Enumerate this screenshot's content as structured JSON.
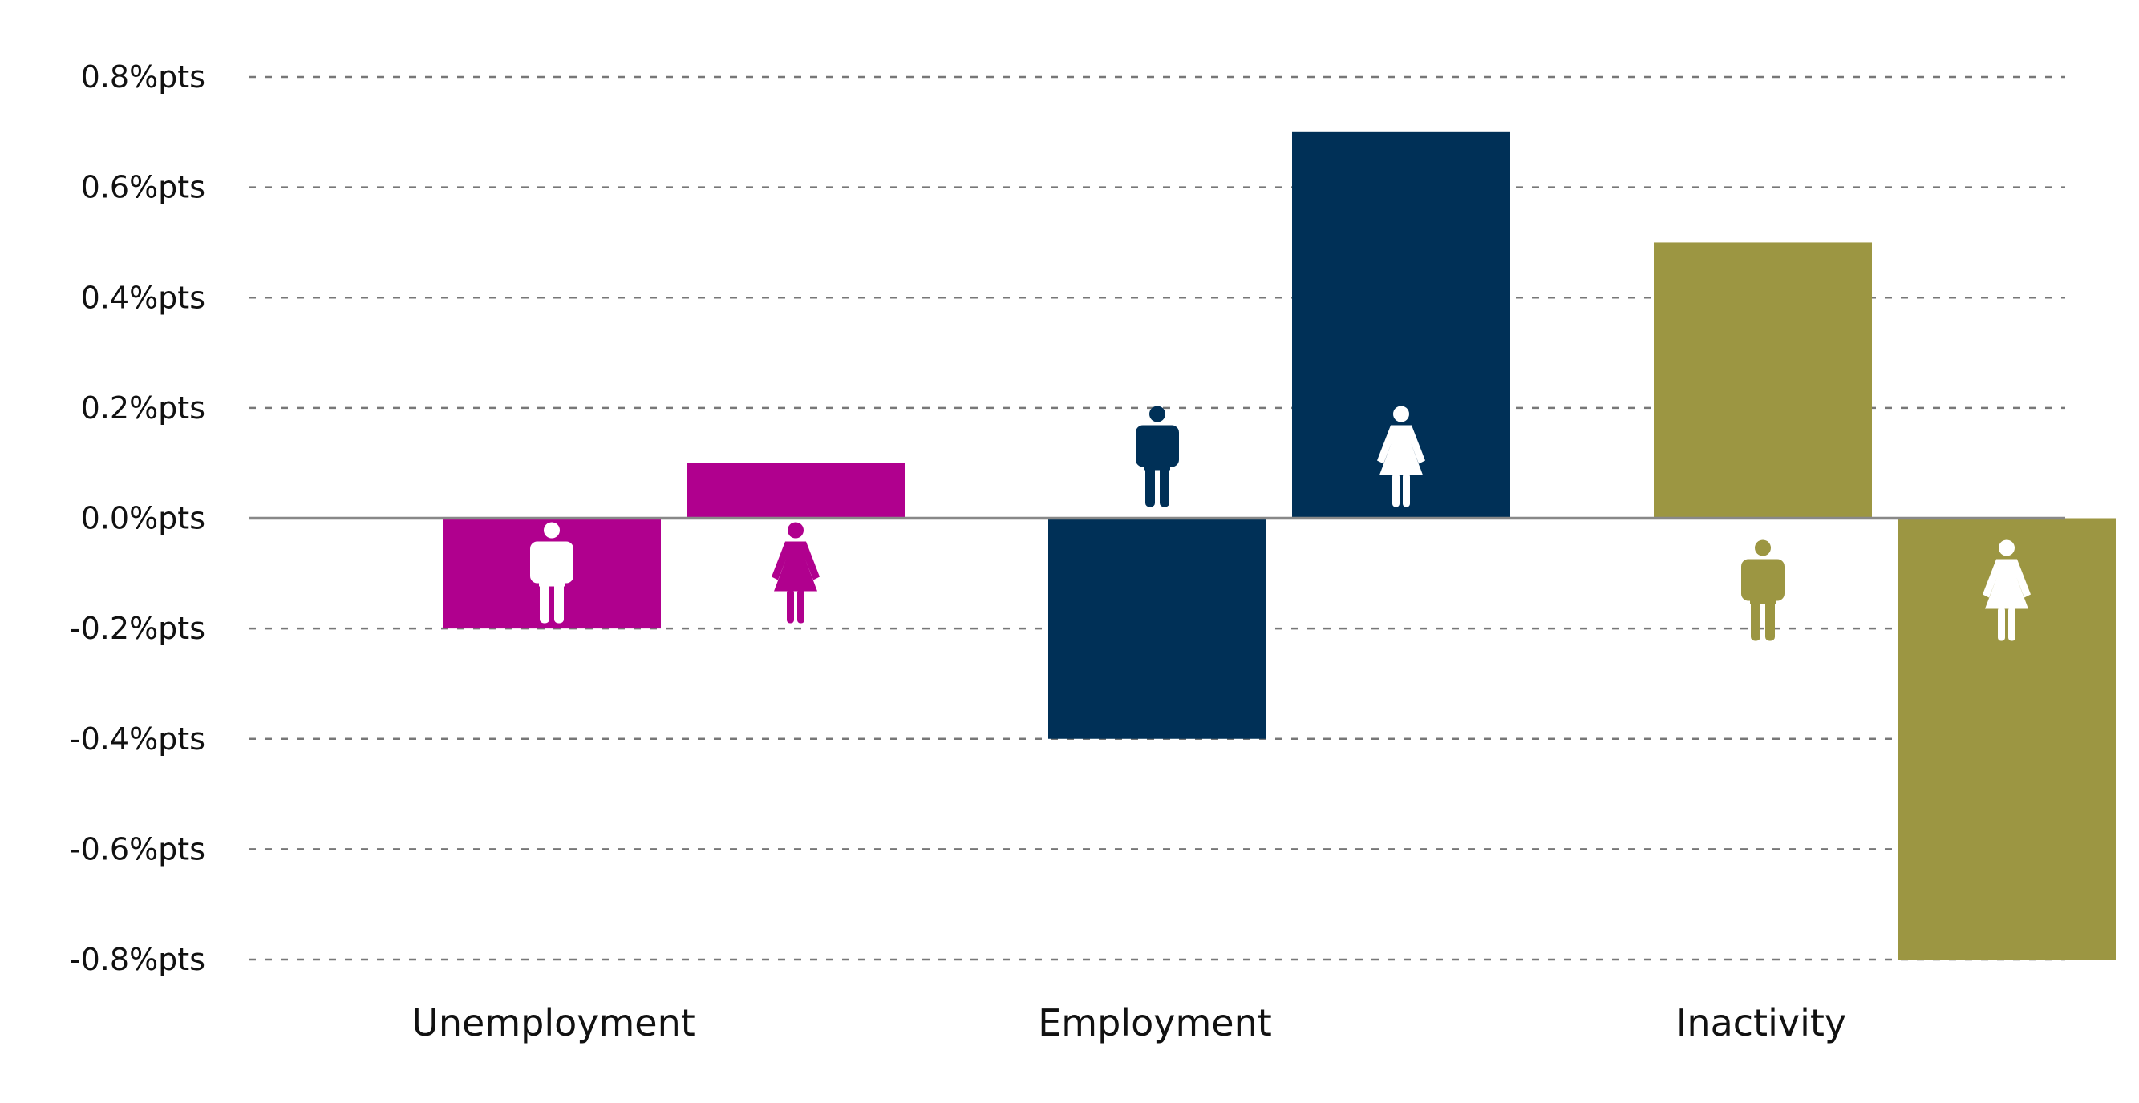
{
  "chart_data": {
    "type": "bar",
    "title": "",
    "xlabel": "",
    "ylabel": "",
    "categories": [
      "Unemployment",
      "Employment",
      "Inactivity"
    ],
    "series": [
      {
        "icon": "man-icon",
        "values": [
          -0.2,
          -0.4,
          0.5
        ]
      },
      {
        "icon": "woman-icon",
        "values": [
          0.1,
          0.7,
          -0.8
        ]
      }
    ],
    "category_colors": [
      "#B0008E",
      "#003057",
      "#9C9642"
    ],
    "ylim": [
      -0.8,
      0.8
    ],
    "yticks": [
      0.8,
      0.6,
      0.4,
      0.2,
      0.0,
      -0.2,
      -0.4,
      -0.6,
      -0.8
    ],
    "ytick_labels": [
      "0.8%pts",
      "0.6%pts",
      "0.4%pts",
      "0.2%pts",
      "0.0%pts",
      "-0.2%pts",
      "-0.4%pts",
      "-0.6%pts",
      "-0.8%pts"
    ],
    "grid": true,
    "legend": "none"
  }
}
